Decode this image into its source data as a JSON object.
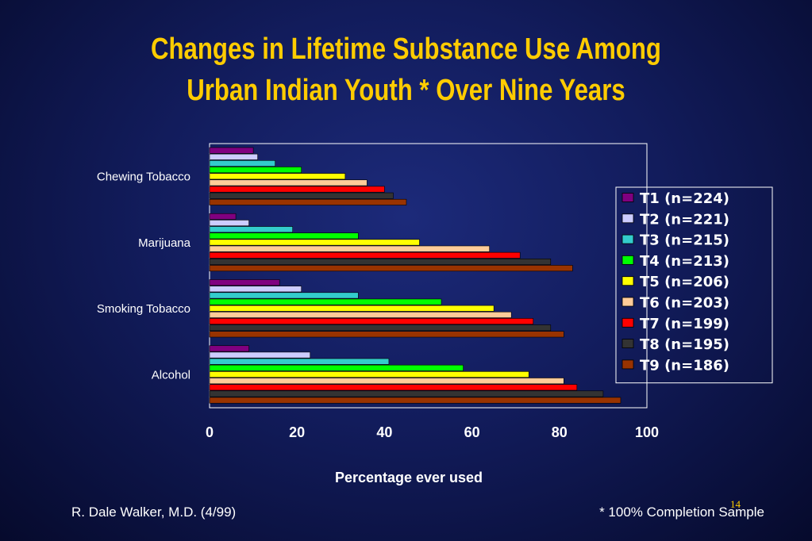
{
  "slide": {
    "title_line1": "Changes in Lifetime Substance Use Among",
    "title_line2": "Urban Indian Youth *  Over Nine Years",
    "footer_left": "R. Dale Walker, M.D. (4/99)",
    "footer_right": "* 100% Completion Sample",
    "page_number": "14"
  },
  "chart_data": {
    "type": "bar",
    "orientation": "horizontal",
    "title": "",
    "xlabel": "Percentage ever used",
    "ylabel": "",
    "xlim": [
      0,
      100
    ],
    "xticks": [
      0,
      20,
      40,
      60,
      80,
      100
    ],
    "grid": false,
    "legend_position": "right",
    "categories": [
      "Chewing Tobacco",
      "Marijuana",
      "Smoking Tobacco",
      "Alcohol"
    ],
    "series": [
      {
        "name": "T1 (n=224)",
        "color": "#800080",
        "values": [
          10,
          6,
          16,
          9
        ]
      },
      {
        "name": "T2 (n=221)",
        "color": "#ccccff",
        "values": [
          11,
          9,
          21,
          23
        ]
      },
      {
        "name": "T3 (n=215)",
        "color": "#33cccc",
        "values": [
          15,
          19,
          34,
          41
        ]
      },
      {
        "name": "T4 (n=213)",
        "color": "#00ff00",
        "values": [
          21,
          34,
          53,
          58
        ]
      },
      {
        "name": "T5 (n=206)",
        "color": "#ffff00",
        "values": [
          31,
          48,
          65,
          73
        ]
      },
      {
        "name": "T6 (n=203)",
        "color": "#ffcc99",
        "values": [
          36,
          64,
          69,
          81
        ]
      },
      {
        "name": "T7 (n=199)",
        "color": "#ff0000",
        "values": [
          40,
          71,
          74,
          84
        ]
      },
      {
        "name": "T8 (n=195)",
        "color": "#333333",
        "values": [
          42,
          78,
          78,
          90
        ]
      },
      {
        "name": "T9 (n=186)",
        "color": "#993300",
        "values": [
          45,
          83,
          81,
          94
        ]
      }
    ]
  }
}
